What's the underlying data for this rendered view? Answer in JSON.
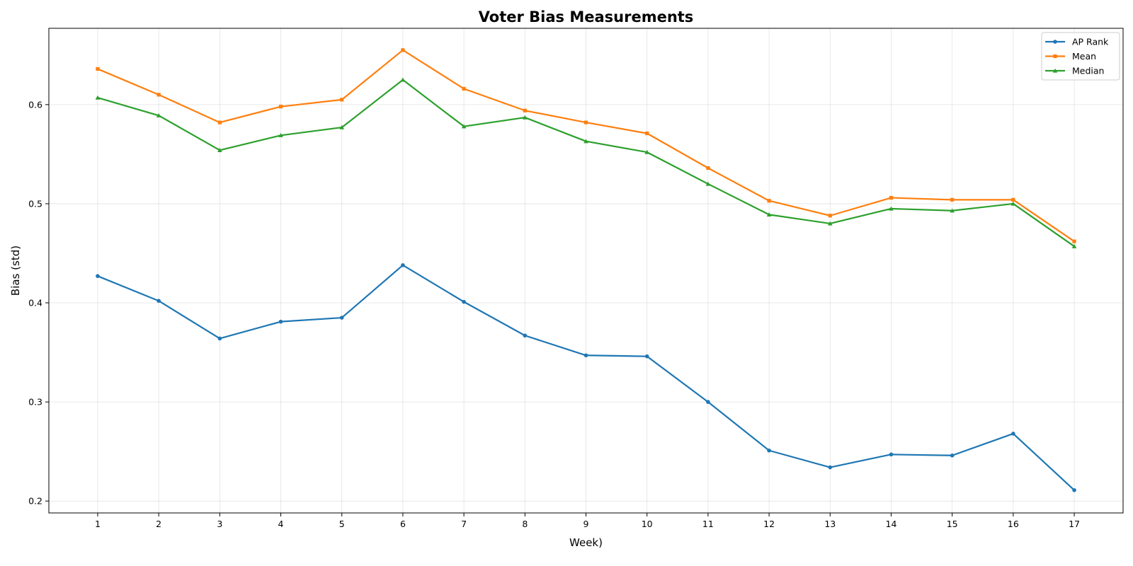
{
  "chart_data": {
    "type": "line",
    "title": "Voter Bias Measurements",
    "xlabel": "Week)",
    "ylabel": "Bias (std)",
    "x": [
      1,
      2,
      3,
      4,
      5,
      6,
      7,
      8,
      9,
      10,
      11,
      12,
      13,
      14,
      15,
      16,
      17
    ],
    "x_tick_labels": [
      "1",
      "2",
      "3",
      "4",
      "5",
      "6",
      "7",
      "8",
      "9",
      "10",
      "11",
      "12",
      "13",
      "14",
      "15",
      "16",
      "17"
    ],
    "y_ticks": [
      0.2,
      0.3,
      0.4,
      0.5,
      0.6
    ],
    "y_tick_labels": [
      "0.2",
      "0.3",
      "0.4",
      "0.5",
      "0.6"
    ],
    "xlim": [
      0.2,
      17.8
    ],
    "ylim": [
      0.188,
      0.677
    ],
    "grid": true,
    "legend": "top-right",
    "series": [
      {
        "name": "AP Rank",
        "color": "#1f77b4",
        "marker": "circle",
        "values": [
          0.427,
          0.402,
          0.364,
          0.381,
          0.385,
          0.438,
          0.401,
          0.367,
          0.347,
          0.346,
          0.3,
          0.251,
          0.234,
          0.247,
          0.246,
          0.268,
          0.211
        ]
      },
      {
        "name": "Mean",
        "color": "#ff7f0e",
        "marker": "square",
        "values": [
          0.636,
          0.61,
          0.582,
          0.598,
          0.605,
          0.655,
          0.616,
          0.594,
          0.582,
          0.571,
          0.536,
          0.503,
          0.488,
          0.506,
          0.504,
          0.504,
          0.462
        ]
      },
      {
        "name": "Median",
        "color": "#2ca02c",
        "marker": "triangle",
        "values": [
          0.607,
          0.589,
          0.554,
          0.569,
          0.577,
          0.625,
          0.578,
          0.587,
          0.563,
          0.552,
          0.52,
          0.489,
          0.48,
          0.495,
          0.493,
          0.5,
          0.457
        ]
      }
    ]
  }
}
